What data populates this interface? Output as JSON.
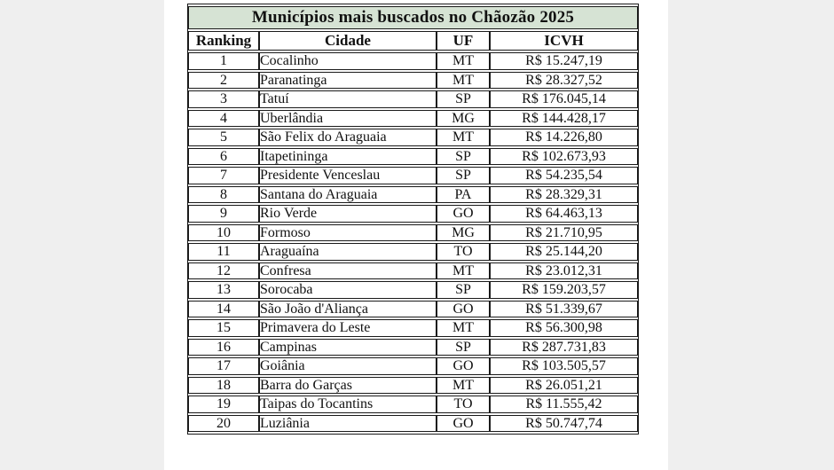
{
  "page": {
    "background_color": "#efefef",
    "panel_color": "#ffffff"
  },
  "table": {
    "title": "Municípios mais buscados no Chãozão 2025",
    "title_background": "#d6e3d4",
    "border_color": "#1a1a1a",
    "columns": [
      "Ranking",
      "Cidade",
      "UF",
      "ICVH"
    ]
  },
  "chart_data": {
    "type": "table",
    "title": "Municípios mais buscados no Chãozão 2025",
    "columns": [
      "Ranking",
      "Cidade",
      "UF",
      "ICVH"
    ],
    "rows": [
      {
        "ranking": "1",
        "cidade": "Cocalinho",
        "uf": "MT",
        "icvh": "R$ 15.247,19"
      },
      {
        "ranking": "2",
        "cidade": "Paranatinga",
        "uf": "MT",
        "icvh": "R$ 28.327,52"
      },
      {
        "ranking": "3",
        "cidade": "Tatuí",
        "uf": "SP",
        "icvh": "R$ 176.045,14"
      },
      {
        "ranking": "4",
        "cidade": "Uberlândia",
        "uf": "MG",
        "icvh": "R$ 144.428,17"
      },
      {
        "ranking": "5",
        "cidade": "São Felix do Araguaia",
        "uf": "MT",
        "icvh": "R$ 14.226,80"
      },
      {
        "ranking": "6",
        "cidade": "Itapetininga",
        "uf": "SP",
        "icvh": "R$ 102.673,93"
      },
      {
        "ranking": "7",
        "cidade": "Presidente Venceslau",
        "uf": "SP",
        "icvh": "R$ 54.235,54"
      },
      {
        "ranking": "8",
        "cidade": "Santana do Araguaia",
        "uf": "PA",
        "icvh": "R$ 28.329,31"
      },
      {
        "ranking": "9",
        "cidade": "Rio Verde",
        "uf": "GO",
        "icvh": "R$ 64.463,13"
      },
      {
        "ranking": "10",
        "cidade": "Formoso",
        "uf": "MG",
        "icvh": "R$ 21.710,95"
      },
      {
        "ranking": "11",
        "cidade": "Araguaína",
        "uf": "TO",
        "icvh": "R$ 25.144,20"
      },
      {
        "ranking": "12",
        "cidade": "Confresa",
        "uf": "MT",
        "icvh": "R$ 23.012,31"
      },
      {
        "ranking": "13",
        "cidade": "Sorocaba",
        "uf": "SP",
        "icvh": "R$ 159.203,57"
      },
      {
        "ranking": "14",
        "cidade": "São João d'Aliança",
        "uf": "GO",
        "icvh": "R$ 51.339,67"
      },
      {
        "ranking": "15",
        "cidade": "Primavera do Leste",
        "uf": "MT",
        "icvh": "R$ 56.300,98"
      },
      {
        "ranking": "16",
        "cidade": "Campinas",
        "uf": "SP",
        "icvh": "R$ 287.731,83"
      },
      {
        "ranking": "17",
        "cidade": "Goiânia",
        "uf": "GO",
        "icvh": "R$ 103.505,57"
      },
      {
        "ranking": "18",
        "cidade": "Barra do Garças",
        "uf": "MT",
        "icvh": "R$ 26.051,21"
      },
      {
        "ranking": "19",
        "cidade": "Taipas do Tocantins",
        "uf": "TO",
        "icvh": "R$ 11.555,42"
      },
      {
        "ranking": "20",
        "cidade": "Luziânia",
        "uf": "GO",
        "icvh": "R$ 50.747,74"
      }
    ]
  }
}
